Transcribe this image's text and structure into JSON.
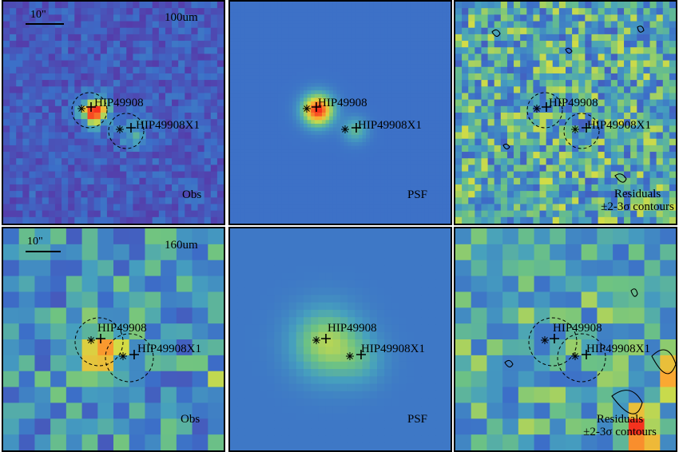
{
  "rows": [
    {
      "band": "100um",
      "scale_label": "10\"",
      "obs_label": "Obs",
      "psf_label": "PSF",
      "residual_label_line1": "Residuals",
      "residual_label_line2": "±2-3σ contours"
    },
    {
      "band": "160um",
      "scale_label": "10\"",
      "obs_label": "Obs",
      "psf_label": "PSF",
      "residual_label_line1": "Residuals",
      "residual_label_line2": "±2-3σ contours"
    }
  ],
  "sources": {
    "primary": "HIP49908",
    "secondary": "HIP49908X1"
  },
  "colors": {
    "background_field": "#3b7fc4",
    "peak": "#ff3b1e",
    "mid": "#f0e63a",
    "low": "#4a2f8f"
  }
}
